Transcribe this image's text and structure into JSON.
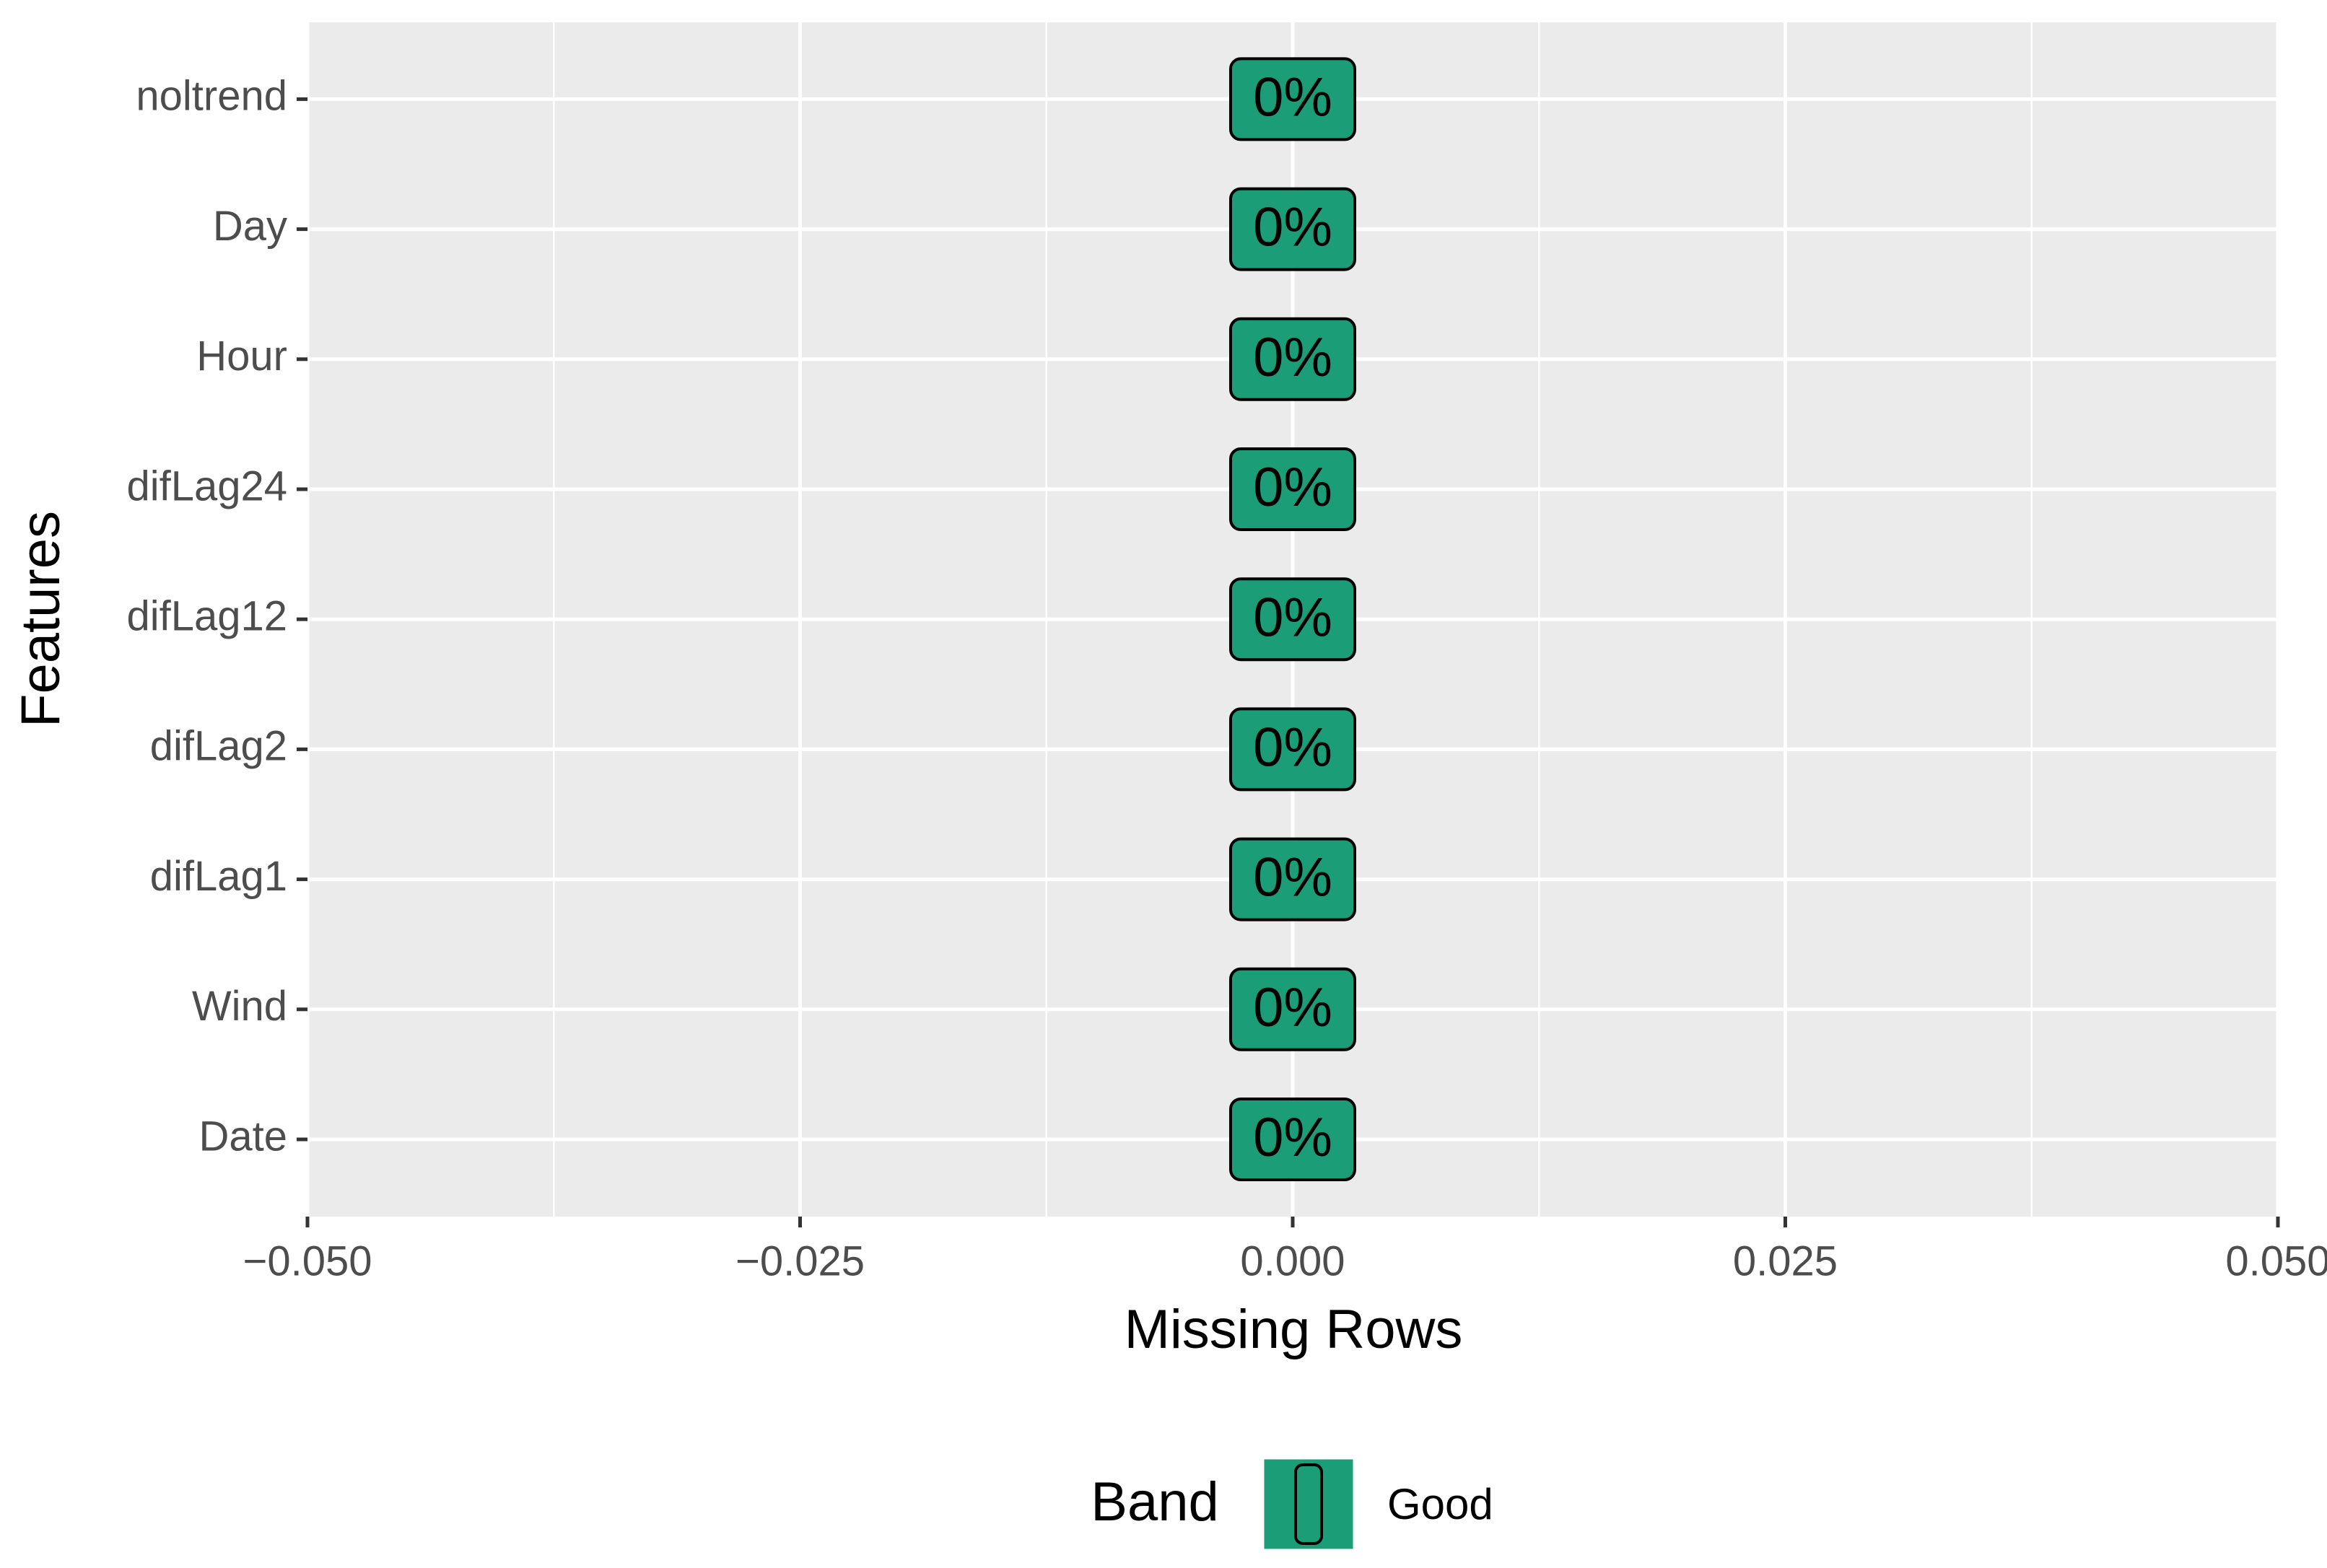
{
  "chart_data": {
    "type": "bar",
    "orientation": "horizontal",
    "x_label": "Missing Rows",
    "y_label": "Features",
    "categories": [
      "Date",
      "Wind",
      "difLag1",
      "difLag2",
      "difLag12",
      "difLag24",
      "Hour",
      "Day",
      "noltrend"
    ],
    "series": [
      {
        "name": "Good",
        "color": "#1b9e77",
        "values": [
          0,
          0,
          0,
          0,
          0,
          0,
          0,
          0,
          0
        ],
        "value_labels": [
          "0%",
          "0%",
          "0%",
          "0%",
          "0%",
          "0%",
          "0%",
          "0%",
          "0%"
        ]
      }
    ],
    "legend_title": "Band",
    "legend_position": "bottom",
    "xlim": [
      -0.05,
      0.05
    ],
    "xticks": [
      {
        "value": -0.05,
        "label": "−0.050"
      },
      {
        "value": -0.025,
        "label": "−0.025"
      },
      {
        "value": 0,
        "label": "0.000"
      },
      0.025,
      {
        "value": 0.05,
        "label": "0.050"
      }
    ],
    "grid": true
  }
}
